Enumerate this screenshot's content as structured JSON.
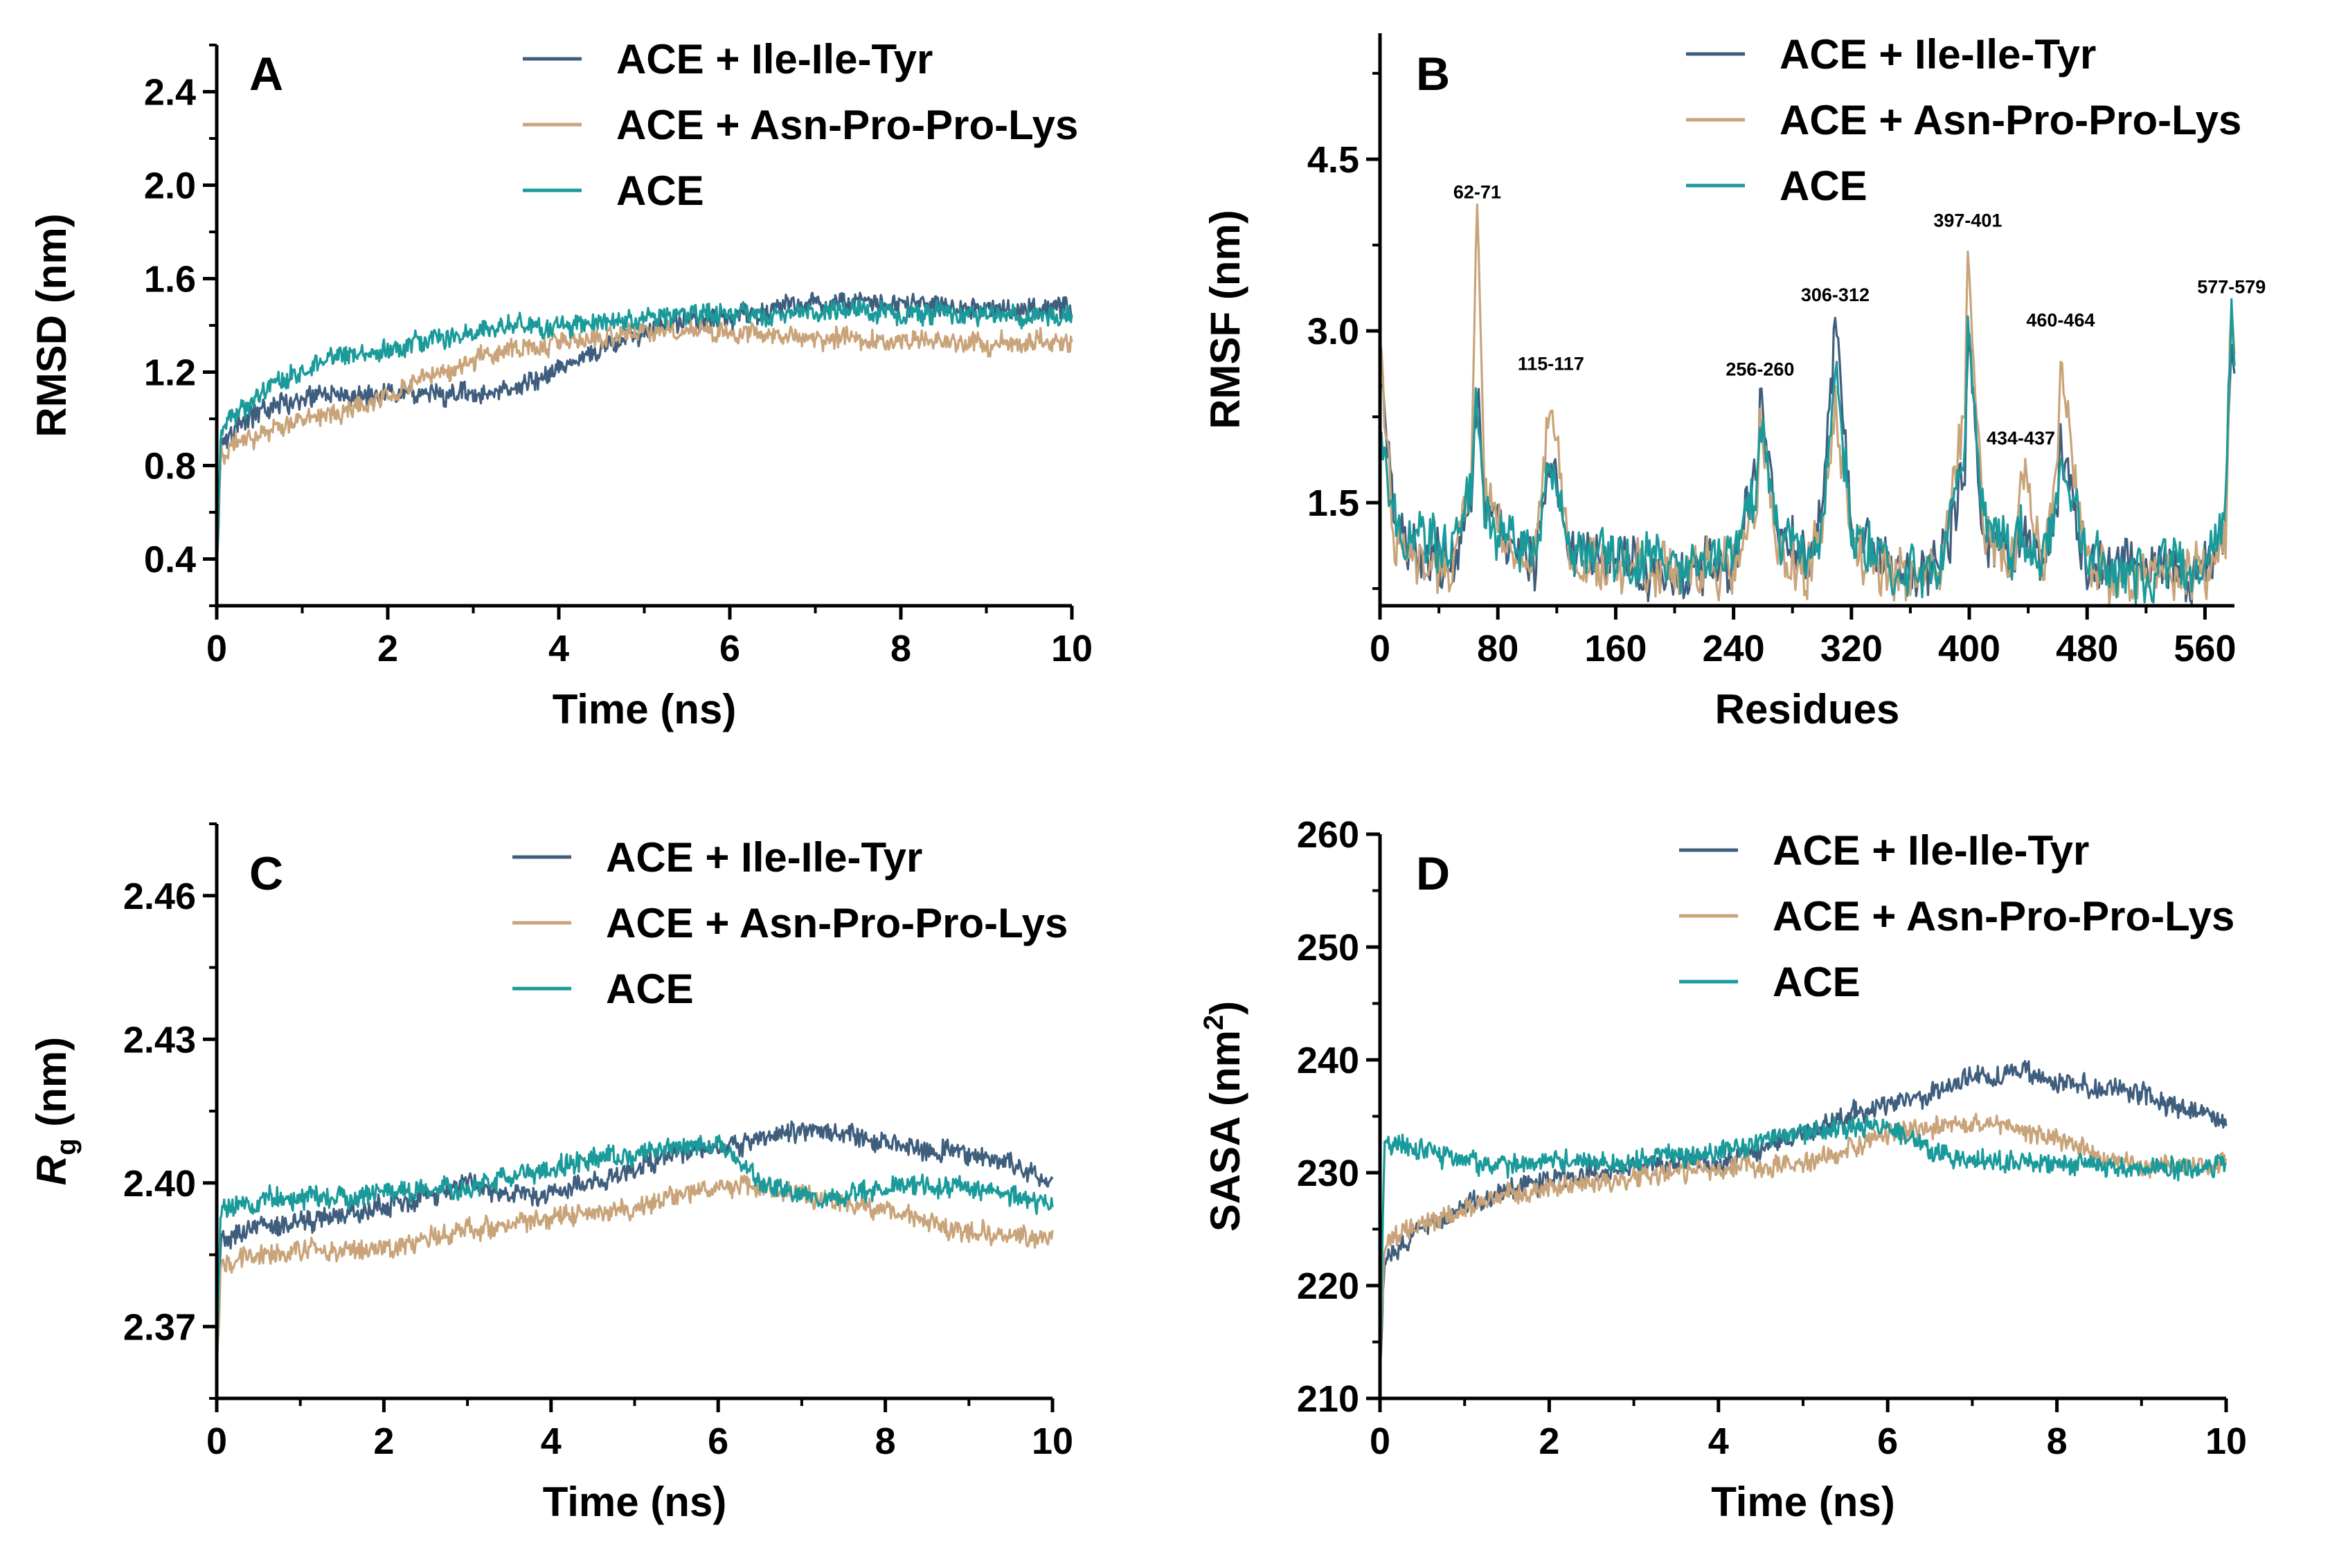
{
  "colors": {
    "ile_ile_tyr": "#3f5e7e",
    "asn_pro_pro_lys": "#c9a47a",
    "ace": "#1a9a9a"
  },
  "legend": [
    {
      "name": "ACE + Ile-Ile-Tyr",
      "color": "#3f5e7e"
    },
    {
      "name": "ACE + Asn-Pro-Pro-Lys",
      "color": "#c9a47a"
    },
    {
      "name": "ACE",
      "color": "#1a9a9a"
    }
  ],
  "chart_data": [
    {
      "panel": "A",
      "type": "line",
      "xlabel": "Time (ns)",
      "ylabel": "RMSD (nm)",
      "xlim": [
        0,
        10
      ],
      "ylim": [
        0.2,
        2.6
      ],
      "xticks": [
        0,
        2,
        4,
        6,
        8,
        10
      ],
      "xtick_labels": [
        "0",
        "2",
        "4",
        "6",
        "8",
        "10"
      ],
      "yticks": [
        0.4,
        0.8,
        1.2,
        1.6,
        2.0,
        2.4
      ],
      "ytick_labels": [
        "0.4",
        "0.8",
        "1.2",
        "1.6",
        "2.0",
        "2.4"
      ],
      "legend_position": "top-right",
      "series": [
        {
          "name": "ACE + Ile-Ile-Tyr",
          "color": "#3f5e7e",
          "x": [
            0,
            0.05,
            0.25,
            0.5,
            0.75,
            1,
            1.5,
            2,
            2.5,
            3,
            3.5,
            4,
            4.5,
            5,
            5.5,
            6,
            6.5,
            7,
            7.5,
            8,
            8.5,
            9,
            9.5,
            10
          ],
          "y": [
            0.35,
            0.9,
            0.97,
            1.03,
            1.07,
            1.09,
            1.1,
            1.12,
            1.11,
            1.1,
            1.13,
            1.2,
            1.3,
            1.37,
            1.42,
            1.43,
            1.47,
            1.5,
            1.5,
            1.49,
            1.48,
            1.47,
            1.47,
            1.48
          ]
        },
        {
          "name": "ACE + Asn-Pro-Pro-Lys",
          "color": "#c9a47a",
          "x": [
            0,
            0.05,
            0.25,
            0.5,
            0.75,
            1,
            1.5,
            2,
            2.5,
            3,
            3.5,
            4,
            4.5,
            5,
            5.5,
            6,
            6.5,
            7,
            7.5,
            8,
            8.5,
            9,
            9.5,
            10
          ],
          "y": [
            0.35,
            0.85,
            0.9,
            0.93,
            0.97,
            1.0,
            1.03,
            1.1,
            1.18,
            1.25,
            1.3,
            1.33,
            1.35,
            1.37,
            1.38,
            1.37,
            1.36,
            1.35,
            1.34,
            1.33,
            1.33,
            1.32,
            1.33,
            1.33
          ]
        },
        {
          "name": "ACE",
          "color": "#1a9a9a",
          "x": [
            0,
            0.05,
            0.25,
            0.5,
            0.75,
            1,
            1.5,
            2,
            2.5,
            3,
            3.5,
            4,
            4.5,
            5,
            5.5,
            6,
            6.5,
            7,
            7.5,
            8,
            8.5,
            9,
            9.5,
            10
          ],
          "y": [
            0.35,
            0.95,
            1.03,
            1.1,
            1.15,
            1.2,
            1.28,
            1.3,
            1.33,
            1.38,
            1.4,
            1.4,
            1.41,
            1.43,
            1.45,
            1.45,
            1.45,
            1.46,
            1.46,
            1.45,
            1.45,
            1.44,
            1.44,
            1.44
          ]
        }
      ]
    },
    {
      "panel": "B",
      "type": "line",
      "xlabel": "Residues",
      "ylabel": "RMSF (nm)",
      "xlim": [
        0,
        580
      ],
      "ylim": [
        0.6,
        5.6
      ],
      "xticks": [
        0,
        80,
        160,
        240,
        320,
        400,
        480,
        560
      ],
      "xtick_labels": [
        "0",
        "80",
        "160",
        "240",
        "320",
        "400",
        "480",
        "560"
      ],
      "yticks": [
        1.5,
        3.0,
        4.5
      ],
      "ytick_labels": [
        "1.5",
        "3.0",
        "4.5"
      ],
      "legend_position": "top-right",
      "annotations": [
        {
          "text": "62-71",
          "x": 66,
          "y": 4.05
        },
        {
          "text": "115-117",
          "x": 116,
          "y": 2.55
        },
        {
          "text": "256-260",
          "x": 258,
          "y": 2.5
        },
        {
          "text": "306-312",
          "x": 309,
          "y": 3.15
        },
        {
          "text": "397-401",
          "x": 399,
          "y": 3.8
        },
        {
          "text": "434-437",
          "x": 435,
          "y": 1.9
        },
        {
          "text": "460-464",
          "x": 462,
          "y": 2.93
        },
        {
          "text": "577-579",
          "x": 578,
          "y": 3.22
        }
      ],
      "series": [
        {
          "name": "ACE + Ile-Ile-Tyr",
          "color": "#3f5e7e",
          "x": [
            0,
            10,
            30,
            50,
            62,
            66,
            71,
            85,
            105,
            116,
            130,
            160,
            200,
            240,
            256,
            258,
            270,
            290,
            300,
            309,
            320,
            350,
            380,
            397,
            399,
            410,
            430,
            435,
            450,
            460,
            462,
            480,
            520,
            560,
            574,
            578,
            580
          ],
          "y": [
            2.7,
            1.2,
            1.1,
            1.0,
            1.6,
            2.6,
            1.5,
            1.2,
            1.0,
            1.9,
            1.1,
            1.0,
            0.9,
            1.0,
            1.8,
            2.45,
            1.2,
            1.0,
            1.4,
            3.1,
            1.3,
            0.9,
            0.9,
            1.8,
            3.0,
            1.3,
            1.0,
            1.3,
            1.0,
            1.5,
            2.0,
            1.0,
            0.9,
            0.9,
            1.3,
            2.9,
            2.6
          ]
        },
        {
          "name": "ACE + Asn-Pro-Pro-Lys",
          "color": "#c9a47a",
          "x": [
            0,
            10,
            30,
            50,
            62,
            66,
            71,
            85,
            105,
            116,
            130,
            160,
            200,
            240,
            256,
            258,
            270,
            290,
            300,
            309,
            320,
            350,
            380,
            397,
            399,
            410,
            430,
            435,
            450,
            460,
            462,
            480,
            520,
            560,
            574,
            578,
            580
          ],
          "y": [
            2.9,
            1.1,
            1.0,
            0.95,
            1.8,
            4.05,
            1.6,
            1.1,
            1.0,
            2.5,
            1.0,
            0.9,
            0.9,
            0.95,
            1.5,
            2.3,
            1.1,
            0.9,
            1.2,
            2.3,
            1.1,
            0.85,
            0.9,
            2.2,
            3.8,
            1.2,
            0.9,
            1.85,
            0.95,
            1.8,
            2.9,
            0.95,
            0.85,
            0.9,
            1.2,
            3.2,
            2.8
          ]
        },
        {
          "name": "ACE",
          "color": "#1a9a9a",
          "x": [
            0,
            10,
            30,
            50,
            62,
            66,
            71,
            85,
            105,
            116,
            130,
            160,
            200,
            240,
            256,
            258,
            270,
            290,
            300,
            309,
            320,
            350,
            380,
            397,
            399,
            410,
            430,
            435,
            450,
            460,
            462,
            480,
            520,
            560,
            574,
            578,
            580
          ],
          "y": [
            2.3,
            1.3,
            1.2,
            1.05,
            1.7,
            2.5,
            1.4,
            1.2,
            1.05,
            1.8,
            1.1,
            1.0,
            0.95,
            1.0,
            1.6,
            2.2,
            1.2,
            1.0,
            1.3,
            2.6,
            1.2,
            0.9,
            0.95,
            2.0,
            3.1,
            1.3,
            1.0,
            1.2,
            1.0,
            1.4,
            1.9,
            1.0,
            0.9,
            0.95,
            1.4,
            3.15,
            2.5
          ]
        }
      ]
    },
    {
      "panel": "C",
      "type": "line",
      "xlabel": "Time (ns)",
      "ylabel": "Rg (nm)",
      "ylabel_main": "R",
      "ylabel_sub": "g",
      "ylabel_unit": " (nm)",
      "xlim": [
        0,
        10
      ],
      "ylim": [
        2.355,
        2.475
      ],
      "xticks": [
        0,
        2,
        4,
        6,
        8,
        10
      ],
      "xtick_labels": [
        "0",
        "2",
        "4",
        "6",
        "8",
        "10"
      ],
      "yticks": [
        2.37,
        2.4,
        2.43,
        2.46
      ],
      "ytick_labels": [
        "2.37",
        "2.40",
        "2.43",
        "2.46"
      ],
      "legend_position": "top-right",
      "series": [
        {
          "name": "ACE + Ile-Ile-Tyr",
          "color": "#3f5e7e",
          "x": [
            0,
            0.05,
            0.25,
            0.5,
            0.75,
            1,
            1.5,
            2,
            2.5,
            3,
            3.5,
            4,
            4.5,
            5,
            5.5,
            6,
            6.5,
            7,
            7.5,
            8,
            8.5,
            9,
            9.5,
            10
          ],
          "y": [
            2.36,
            2.388,
            2.389,
            2.39,
            2.391,
            2.392,
            2.393,
            2.395,
            2.397,
            2.4,
            2.398,
            2.398,
            2.4,
            2.403,
            2.406,
            2.407,
            2.409,
            2.411,
            2.41,
            2.408,
            2.407,
            2.406,
            2.404,
            2.4
          ]
        },
        {
          "name": "ACE + Asn-Pro-Pro-Lys",
          "color": "#c9a47a",
          "x": [
            0,
            0.05,
            0.25,
            0.5,
            0.75,
            1,
            1.5,
            2,
            2.5,
            3,
            3.5,
            4,
            4.5,
            5,
            5.5,
            6,
            6.5,
            7,
            7.5,
            8,
            8.5,
            9,
            9.5,
            10
          ],
          "y": [
            2.36,
            2.383,
            2.384,
            2.385,
            2.385,
            2.386,
            2.386,
            2.386,
            2.388,
            2.39,
            2.391,
            2.393,
            2.394,
            2.395,
            2.397,
            2.399,
            2.399,
            2.398,
            2.396,
            2.394,
            2.392,
            2.39,
            2.389,
            2.388
          ]
        },
        {
          "name": "ACE",
          "color": "#1a9a9a",
          "x": [
            0,
            0.05,
            0.25,
            0.5,
            0.75,
            1,
            1.5,
            2,
            2.5,
            3,
            3.5,
            4,
            4.5,
            5,
            5.5,
            6,
            6.5,
            7,
            7.5,
            8,
            8.5,
            9,
            9.5,
            10
          ],
          "y": [
            2.36,
            2.395,
            2.396,
            2.396,
            2.397,
            2.397,
            2.397,
            2.398,
            2.399,
            2.399,
            2.401,
            2.403,
            2.405,
            2.406,
            2.407,
            2.409,
            2.4,
            2.397,
            2.397,
            2.399,
            2.4,
            2.399,
            2.397,
            2.396
          ]
        }
      ]
    },
    {
      "panel": "D",
      "type": "line",
      "xlabel": "Time (ns)",
      "ylabel": "SASA (nm2)",
      "ylabel_main": "SASA (nm",
      "ylabel_sup": "2",
      "ylabel_close": ")",
      "xlim": [
        0,
        10
      ],
      "ylim": [
        210,
        260
      ],
      "xticks": [
        0,
        2,
        4,
        6,
        8,
        10
      ],
      "xtick_labels": [
        "0",
        "2",
        "4",
        "6",
        "8",
        "10"
      ],
      "yticks": [
        210,
        220,
        230,
        240,
        250,
        260
      ],
      "ytick_labels": [
        "210",
        "220",
        "230",
        "240",
        "250",
        "260"
      ],
      "legend_position": "top-right",
      "series": [
        {
          "name": "ACE + Ile-Ile-Tyr",
          "color": "#3f5e7e",
          "x": [
            0,
            0.05,
            0.25,
            0.5,
            0.75,
            1,
            1.5,
            2,
            2.5,
            3,
            3.5,
            4,
            4.5,
            5,
            5.5,
            6,
            6.5,
            7,
            7.5,
            8,
            8.5,
            9,
            9.5,
            10
          ],
          "y": [
            212,
            222,
            223.5,
            225,
            226,
            227,
            228.5,
            229.5,
            230,
            230.5,
            231,
            231,
            232,
            233.5,
            235,
            236,
            237,
            238.5,
            239,
            238,
            237.5,
            237,
            235.5,
            234.5
          ]
        },
        {
          "name": "ACE + Asn-Pro-Pro-Lys",
          "color": "#c9a47a",
          "x": [
            0,
            0.05,
            0.25,
            0.5,
            0.75,
            1,
            1.5,
            2,
            2.5,
            3,
            3.5,
            4,
            4.5,
            5,
            5.5,
            6,
            6.5,
            7,
            7.5,
            8,
            8.5,
            9,
            9.5,
            10
          ],
          "y": [
            212,
            223.5,
            224.5,
            225.5,
            226,
            227,
            228,
            228.5,
            229,
            229.5,
            230,
            230.5,
            230.5,
            231,
            232,
            233.5,
            234,
            234.5,
            234,
            233,
            231.5,
            230.5,
            230.5,
            231
          ]
        },
        {
          "name": "ACE",
          "color": "#1a9a9a",
          "x": [
            0,
            0.05,
            0.25,
            0.5,
            0.75,
            1,
            1.5,
            2,
            2.5,
            3,
            3.5,
            4,
            4.5,
            5,
            5.5,
            6,
            6.5,
            7,
            7.5,
            8,
            8.5,
            9,
            9.5,
            10
          ],
          "y": [
            212,
            232,
            232.5,
            232,
            231.5,
            231,
            230.5,
            231,
            231,
            231,
            231.5,
            232,
            233,
            233.5,
            234,
            234,
            232,
            231,
            231,
            231,
            230.5,
            230.5,
            230.5,
            230.5
          ]
        }
      ]
    }
  ]
}
